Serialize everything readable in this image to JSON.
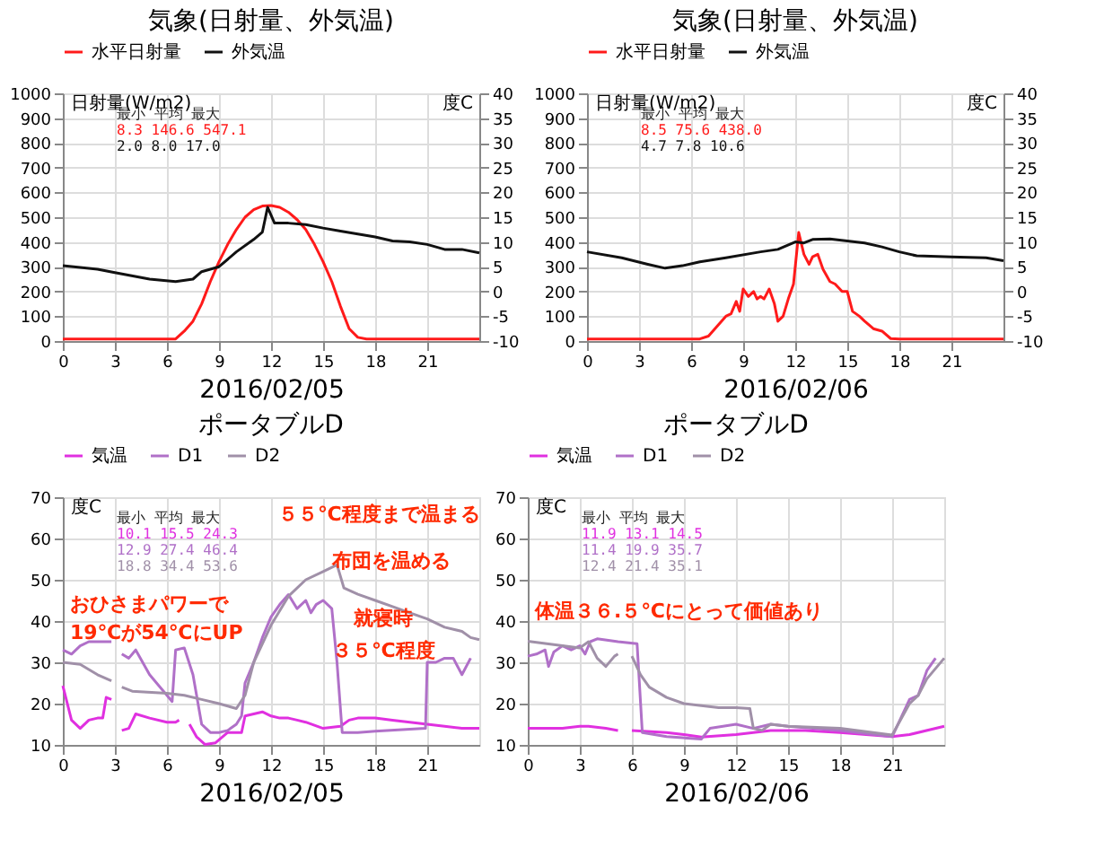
{
  "chart_data": [
    {
      "type": "line",
      "title": "気象(日射量、外気温)",
      "xlabel": "2016/02/05",
      "ylabel": "日射量(W/m2)",
      "y2label": "度C",
      "legend": "top",
      "grid": true,
      "xlim": [
        0,
        24
      ],
      "xticks": [
        0,
        3,
        6,
        9,
        12,
        15,
        18,
        21
      ],
      "ylim": [
        0,
        1000
      ],
      "yticks": [
        0,
        100,
        200,
        300,
        400,
        500,
        600,
        700,
        800,
        900,
        1000
      ],
      "y2lim": [
        -10,
        40
      ],
      "y2ticks": [
        -10,
        -5,
        0,
        5,
        10,
        15,
        20,
        25,
        30,
        35,
        40
      ],
      "annotations": [
        "最小  平均   最大",
        "8.3  146.6  547.1",
        "2.0  8.0    17.0"
      ],
      "series": [
        {
          "name": "水平日射量",
          "color": "#ff1a1a",
          "x": [
            0,
            3,
            6,
            6.5,
            7,
            7.5,
            8,
            8.5,
            9,
            9.5,
            10,
            10.5,
            11,
            11.5,
            12,
            12.5,
            13,
            13.5,
            14,
            14.5,
            15,
            15.5,
            16,
            16.5,
            17,
            17.5,
            20,
            24
          ],
          "values": [
            8.3,
            8.3,
            8.3,
            8.3,
            40,
            80,
            150,
            240,
            320,
            390,
            450,
            500,
            530,
            545,
            547.1,
            540,
            520,
            490,
            450,
            390,
            320,
            240,
            140,
            50,
            15,
            8.3,
            8.3,
            8.3
          ]
        },
        {
          "name": "外気温",
          "color": "#111111",
          "axis": "y2",
          "x": [
            0,
            2,
            3,
            5,
            6.5,
            7.5,
            8,
            9,
            10,
            11,
            11.5,
            11.8,
            12.2,
            13,
            14,
            15,
            16,
            18,
            19,
            20,
            21,
            22,
            23,
            24
          ],
          "values": [
            5.2,
            4.5,
            3.8,
            2.5,
            2.0,
            2.5,
            4.0,
            5.0,
            8.0,
            10.5,
            12.0,
            17.0,
            13.8,
            13.8,
            13.5,
            12.8,
            12.2,
            11.0,
            10.2,
            10.0,
            9.5,
            8.5,
            8.5,
            7.8
          ]
        }
      ]
    },
    {
      "type": "line",
      "title": "気象(日射量、外気温)",
      "xlabel": "2016/02/06",
      "ylabel": "日射量(W/m2)",
      "y2label": "度C",
      "legend": "top",
      "grid": true,
      "xlim": [
        0,
        24
      ],
      "xticks": [
        0,
        3,
        6,
        9,
        12,
        15,
        18,
        21
      ],
      "ylim": [
        0,
        1000
      ],
      "yticks": [
        0,
        100,
        200,
        300,
        400,
        500,
        600,
        700,
        800,
        900,
        1000
      ],
      "y2lim": [
        -10,
        40
      ],
      "y2ticks": [
        -10,
        -5,
        0,
        5,
        10,
        15,
        20,
        25,
        30,
        35,
        40
      ],
      "annotations": [
        "最小  平均   最大",
        "8.5  75.6   438.0",
        "4.7  7.8    10.6"
      ],
      "series": [
        {
          "name": "水平日射量",
          "color": "#ff1a1a",
          "x": [
            0,
            3,
            6,
            6.5,
            7,
            7.5,
            8,
            8.3,
            8.6,
            8.8,
            9,
            9.3,
            9.6,
            9.8,
            10,
            10.2,
            10.5,
            10.8,
            11,
            11.3,
            11.6,
            11.9,
            12.2,
            12.5,
            12.8,
            13,
            13.3,
            13.6,
            14,
            14.3,
            14.7,
            15,
            15.3,
            15.7,
            16,
            16.5,
            17,
            17.5,
            18,
            21,
            24
          ],
          "values": [
            8.5,
            8.5,
            8.5,
            8.5,
            20,
            60,
            100,
            110,
            160,
            120,
            210,
            180,
            200,
            170,
            180,
            170,
            210,
            150,
            80,
            100,
            170,
            230,
            438.0,
            350,
            310,
            340,
            350,
            290,
            240,
            230,
            200,
            200,
            120,
            100,
            80,
            50,
            40,
            10,
            8.5,
            8.5,
            8.5
          ]
        },
        {
          "name": "外気温",
          "color": "#111111",
          "axis": "y2",
          "x": [
            0,
            2,
            3.5,
            4.5,
            5.5,
            6.5,
            8,
            10,
            11,
            12,
            12.5,
            13,
            14,
            15,
            16,
            17,
            18,
            19,
            21,
            23,
            24
          ],
          "values": [
            8.0,
            6.8,
            5.5,
            4.7,
            5.2,
            6.0,
            6.8,
            8.0,
            8.5,
            10.0,
            9.8,
            10.5,
            10.6,
            10.2,
            9.8,
            9.0,
            8.0,
            7.2,
            7.0,
            6.8,
            6.2
          ]
        }
      ]
    },
    {
      "type": "line",
      "title": "ポータブルD",
      "xlabel": "2016/02/05",
      "ylabel": "度C",
      "legend": "top",
      "grid": true,
      "xlim": [
        0,
        24
      ],
      "xticks": [
        0,
        3,
        6,
        9,
        12,
        15,
        18,
        21
      ],
      "ylim": [
        10,
        70
      ],
      "yticks": [
        10,
        20,
        30,
        40,
        50,
        60,
        70
      ],
      "annotations": [
        "最小  平均   最大",
        "10.1  15.5   24.3",
        "12.9  27.4   46.4",
        "18.8  34.4   53.6",
        "５５℃程度まで温まる",
        "布団を温める",
        "おひさまパワーで",
        "19℃が54℃にUP",
        "就寝時",
        "３５℃程度"
      ],
      "series": [
        {
          "name": "気温",
          "color": "#e030e0",
          "x": [
            0,
            0.5,
            1,
            1.5,
            2,
            2.3,
            2.5,
            2.8,
            3.1,
            3.4,
            3.8,
            4.2,
            5,
            6,
            6.5,
            6.7,
            7,
            7.3,
            7.7,
            8.2,
            8.8,
            9.5,
            10.3,
            10.5,
            11,
            11.5,
            12,
            12.5,
            13,
            13.5,
            14,
            15,
            16,
            16.5,
            17,
            18,
            19,
            20,
            21,
            22,
            23,
            24
          ],
          "values": [
            24.3,
            16,
            14,
            16,
            16.5,
            16.5,
            21.5,
            21,
            null,
            13.5,
            14,
            17.5,
            16.5,
            15.5,
            15.5,
            16,
            null,
            15,
            12,
            10.1,
            10.5,
            13,
            13,
            17,
            17.5,
            18,
            17,
            16.5,
            16.5,
            16,
            15.5,
            14,
            14.5,
            16,
            16.5,
            16.5,
            16,
            15.5,
            15,
            14.5,
            14,
            14
          ]
        },
        {
          "name": "D1",
          "color": "#b070c8",
          "x": [
            0,
            0.5,
            1,
            1.5,
            2.8,
            3.1,
            3.4,
            3.8,
            4.2,
            5,
            6,
            6.3,
            6.5,
            7,
            7.5,
            8,
            8.5,
            9,
            9.5,
            10,
            10.3,
            10.5,
            11,
            11.5,
            12,
            12.5,
            13,
            13.5,
            14,
            14.3,
            14.6,
            15,
            15.5,
            15.8,
            16.1,
            17,
            18,
            20,
            20.9,
            21,
            21.5,
            22,
            22.5,
            23,
            23.5
          ],
          "values": [
            33,
            32,
            34,
            35,
            35,
            null,
            32,
            31,
            33,
            27,
            22,
            20.5,
            33,
            33.5,
            27,
            15,
            13,
            13,
            13.5,
            15,
            17,
            25,
            30,
            36,
            41,
            44,
            46.4,
            43,
            45,
            42,
            44,
            45,
            43,
            30,
            13,
            13,
            13.3,
            13.8,
            14,
            30,
            30,
            31,
            31,
            27,
            31
          ]
        },
        {
          "name": "D2",
          "color": "#a090a8",
          "x": [
            0,
            1,
            2,
            2.8,
            3.1,
            3.4,
            4,
            6,
            7,
            8,
            9,
            10,
            10.5,
            11,
            12,
            13,
            14,
            15,
            15.8,
            16.2,
            17,
            18,
            19,
            20,
            21,
            22,
            23,
            23.5,
            24
          ],
          "values": [
            30,
            29.5,
            27,
            25.5,
            null,
            24,
            23,
            22.5,
            22,
            21,
            20,
            18.8,
            22,
            30,
            39,
            46,
            50,
            52,
            53.6,
            48,
            46.5,
            45,
            43.5,
            42,
            40.5,
            38.5,
            37.5,
            36,
            35.5
          ]
        }
      ]
    },
    {
      "type": "line",
      "title": "ポータブルD",
      "xlabel": "2016/02/06",
      "ylabel": "度C",
      "legend": "top",
      "grid": true,
      "xlim": [
        0,
        24
      ],
      "xticks": [
        0,
        3,
        6,
        9,
        12,
        15,
        18,
        21
      ],
      "ylim": [
        10,
        70
      ],
      "yticks": [
        10,
        20,
        30,
        40,
        50,
        60,
        70
      ],
      "annotations": [
        "最小  平均   最大",
        "11.9  13.1   14.5",
        "11.4  19.9   35.7",
        "12.4  21.4   35.1",
        "体温３６.５℃にとって価値あり"
      ],
      "series": [
        {
          "name": "気温",
          "color": "#e030e0",
          "x": [
            0,
            2,
            3,
            3.5,
            4.5,
            5.2,
            5.6,
            6,
            8,
            9,
            10,
            12,
            14,
            16,
            18,
            21,
            22,
            24
          ],
          "values": [
            14,
            14,
            14.5,
            14.5,
            14,
            13.5,
            null,
            13.5,
            13,
            12.5,
            11.9,
            12.5,
            13.5,
            13.5,
            13,
            12,
            12.5,
            14.5
          ]
        },
        {
          "name": "D1",
          "color": "#b070c8",
          "x": [
            0,
            0.5,
            1,
            1.2,
            1.5,
            2,
            2.5,
            3,
            3.3,
            3.6,
            4,
            5.2,
            6.3,
            6.6,
            8,
            10,
            10.5,
            12,
            13,
            14,
            15,
            18,
            21,
            22,
            22.5,
            23,
            23.5
          ],
          "values": [
            31.5,
            32,
            33,
            29,
            32.5,
            34,
            33,
            34,
            32,
            35,
            35.7,
            35,
            34.5,
            13,
            12,
            11.4,
            14,
            15,
            14,
            15,
            14.5,
            13.5,
            12,
            21,
            22,
            28,
            31
          ]
        },
        {
          "name": "D2",
          "color": "#a090a8",
          "x": [
            0,
            2,
            3,
            3.5,
            4,
            4.5,
            5,
            5.2,
            5.6,
            6,
            6.5,
            7,
            8,
            9,
            10,
            11,
            12,
            12.8,
            13,
            13.5,
            14,
            15,
            18,
            21,
            22,
            22.5,
            23,
            24
          ],
          "values": [
            35.1,
            34,
            33.5,
            35,
            31,
            29,
            31.5,
            32,
            null,
            31.5,
            27,
            24,
            21.5,
            20,
            19.5,
            19,
            19,
            18.8,
            14,
            13.5,
            15,
            14.5,
            14,
            12.4,
            20,
            22,
            26,
            31
          ]
        }
      ]
    }
  ]
}
